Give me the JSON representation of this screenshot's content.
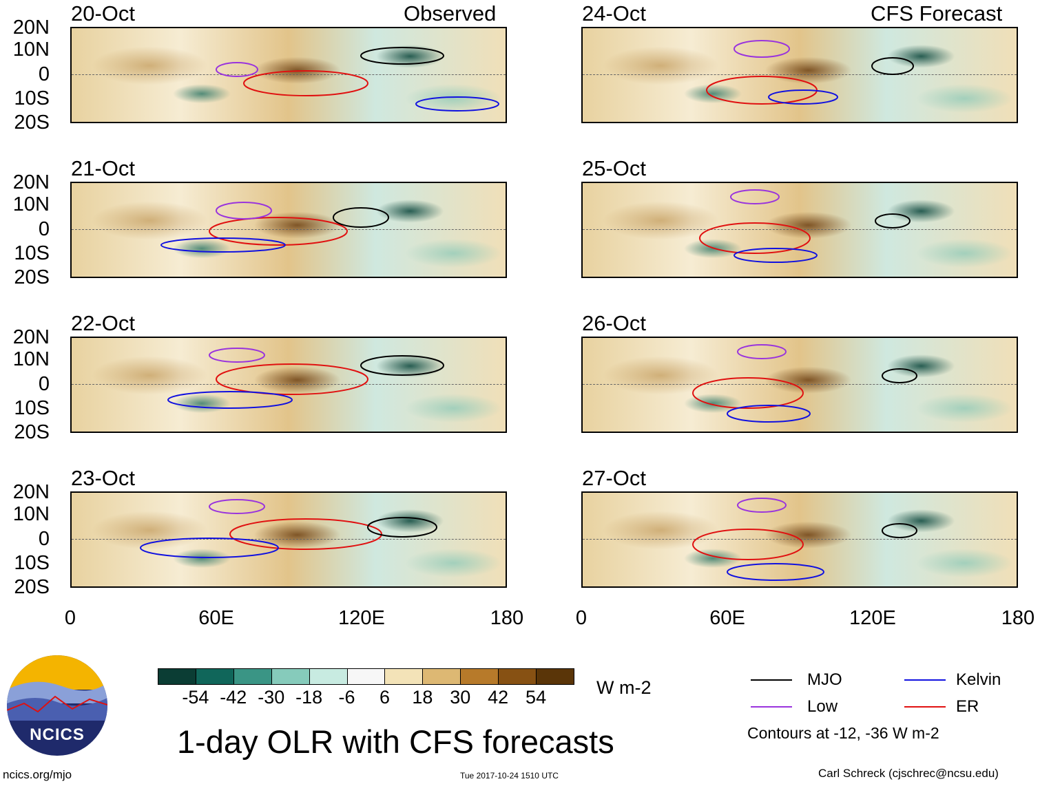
{
  "panels_left_header": "Observed",
  "panels_right_header": "CFS Forecast",
  "observed_dates": [
    "20-Oct",
    "21-Oct",
    "22-Oct",
    "23-Oct"
  ],
  "forecast_dates": [
    "24-Oct",
    "25-Oct",
    "26-Oct",
    "27-Oct"
  ],
  "lat_labels": [
    "20N",
    "10N",
    "0",
    "10S",
    "20S"
  ],
  "lon_labels": [
    "0",
    "60E",
    "120E",
    "180"
  ],
  "colorbar": {
    "unit": "W m-2",
    "ticks": [
      "-54",
      "-42",
      "-30",
      "-18",
      "-6",
      "6",
      "18",
      "30",
      "42",
      "54"
    ],
    "colors": [
      "#0b3d34",
      "#10665a",
      "#3a9585",
      "#86cbbb",
      "#c8ebe1",
      "#f7f7f7",
      "#f3e3b8",
      "#ddb873",
      "#b77a2a",
      "#875113",
      "#5a3508"
    ]
  },
  "legend": {
    "items": [
      {
        "label": "MJO",
        "color": "#000000"
      },
      {
        "label": "Kelvin",
        "color": "#1010e0"
      },
      {
        "label": "Low",
        "color": "#9933dd"
      },
      {
        "label": "ER",
        "color": "#e01010"
      }
    ],
    "note": "Contours at -12, -36 W m-2"
  },
  "title": "1-day OLR with CFS forecasts",
  "logo_text": "NCICS",
  "footer": {
    "url": "ncics.org/mjo",
    "timestamp": "Tue 2017-10-24 1510 UTC",
    "credit": "Carl Schreck (cjschrec@ncsu.edu)"
  }
}
